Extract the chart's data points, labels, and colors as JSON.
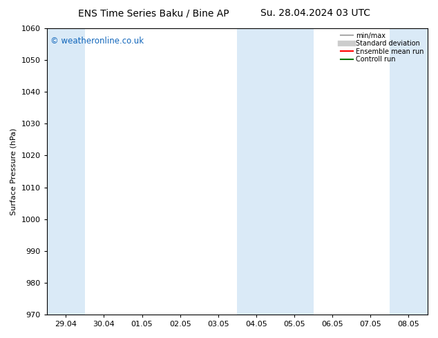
{
  "title_left": "ENS Time Series Baku / Bine AP",
  "title_right": "Su. 28.04.2024 03 UTC",
  "ylabel": "Surface Pressure (hPa)",
  "ylim": [
    970,
    1060
  ],
  "yticks": [
    970,
    980,
    990,
    1000,
    1010,
    1020,
    1030,
    1040,
    1050,
    1060
  ],
  "xtick_labels": [
    "29.04",
    "30.04",
    "01.05",
    "02.05",
    "03.05",
    "04.05",
    "05.05",
    "06.05",
    "07.05",
    "08.05"
  ],
  "watermark": "© weatheronline.co.uk",
  "watermark_color": "#1166bb",
  "bg_color": "#ffffff",
  "plot_bg_color": "#ffffff",
  "shaded_color": "#daeaf7",
  "legend_items": [
    {
      "label": "min/max",
      "color": "#aaaaaa",
      "lw": 1.5,
      "style": "solid"
    },
    {
      "label": "Standard deviation",
      "color": "#cccccc",
      "lw": 6,
      "style": "solid"
    },
    {
      "label": "Ensemble mean run",
      "color": "#ff0000",
      "lw": 1.5,
      "style": "solid"
    },
    {
      "label": "Controll run",
      "color": "#007700",
      "lw": 1.5,
      "style": "solid"
    }
  ],
  "title_fontsize": 10,
  "tick_fontsize": 8,
  "ylabel_fontsize": 8,
  "legend_fontsize": 7
}
